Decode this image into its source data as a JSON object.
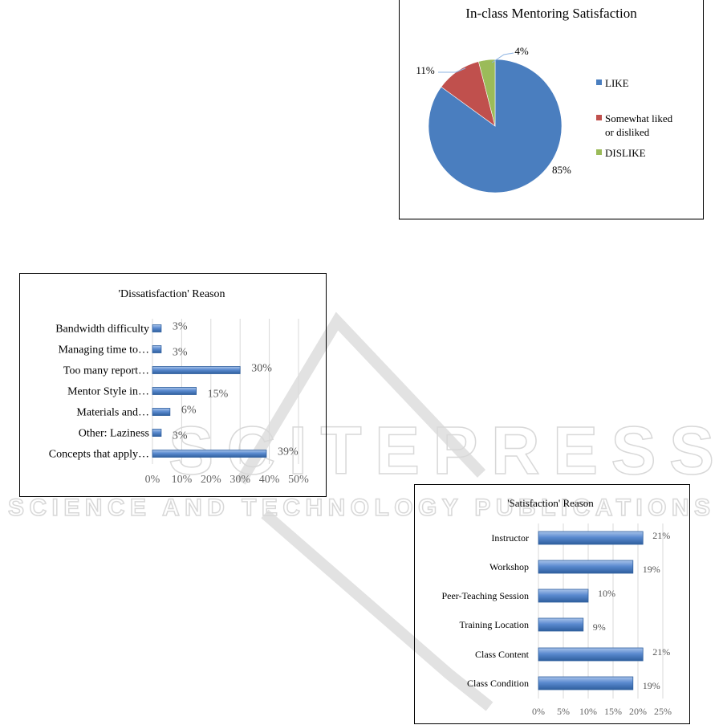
{
  "watermark": {
    "line1": "SCITEPRESS",
    "line2": "SCIENCE AND TECHNOLOGY PUBLICATIONS"
  },
  "chart_data": [
    {
      "type": "pie",
      "title": "In-class Mentoring Satisfaction",
      "categories": [
        "LIKE",
        "Somewhat liked or disliked",
        "DISLIKE"
      ],
      "legend_lines": [
        [
          "LIKE"
        ],
        [
          "Somewhat liked",
          "or disliked"
        ],
        [
          "DISLIKE"
        ]
      ],
      "values": [
        85,
        11,
        4
      ],
      "data_labels": [
        "85%",
        "11%",
        "4%"
      ],
      "colors": [
        "#4a7ebf",
        "#c0504d",
        "#9bbb59"
      ],
      "legend": "right"
    },
    {
      "type": "bar",
      "orientation": "horizontal",
      "title": "'Dissatisfaction' Reason",
      "categories": [
        "Bandwidth difficulty",
        "Managing time to…",
        "Too many report…",
        "Mentor Style in…",
        "Materials and…",
        "Other: Laziness",
        "Concepts that apply…"
      ],
      "values": [
        3,
        3,
        30,
        15,
        6,
        3,
        39
      ],
      "data_labels": [
        "3%",
        "3%",
        "30%",
        "15%",
        "6%",
        "3%",
        "39%"
      ],
      "xlim": [
        0,
        50
      ],
      "xticks": [
        "0%",
        "10%",
        "20%",
        "30%",
        "40%",
        "50%"
      ],
      "grid": true,
      "color": "#4f81bd"
    },
    {
      "type": "bar",
      "orientation": "horizontal",
      "title": "'Satisfaction' Reason",
      "categories": [
        "Instructor",
        "Workshop",
        "Peer-Teaching Session",
        "Training Location",
        "Class Content",
        "Class Condition"
      ],
      "values": [
        21,
        19,
        10,
        9,
        21,
        19
      ],
      "data_labels": [
        "21%",
        "19%",
        "10%",
        "9%",
        "21%",
        "19%"
      ],
      "xlim": [
        0,
        25
      ],
      "xticks": [
        "0%",
        "5%",
        "10%",
        "15%",
        "20%",
        "25%"
      ],
      "grid": true,
      "color": "#4f81bd"
    }
  ]
}
